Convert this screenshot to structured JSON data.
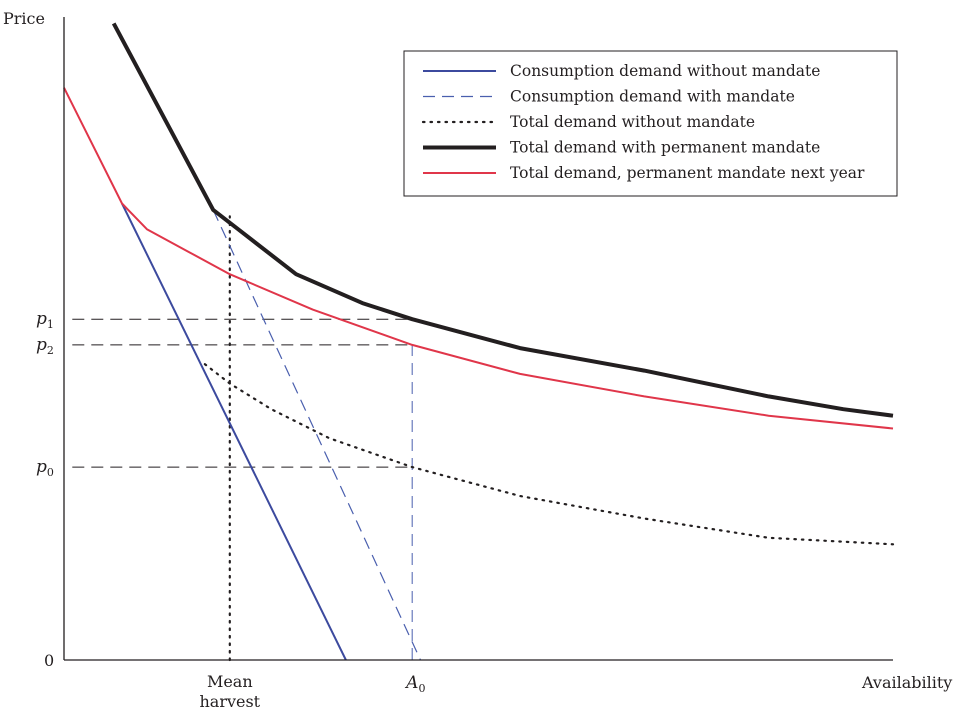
{
  "chart_data": {
    "type": "line",
    "title": "",
    "ylabel": "Price",
    "xlabel": "Availability",
    "x_ticks": [
      {
        "id": "mean-harvest",
        "lines": [
          "Mean",
          "harvest"
        ],
        "x": 0.2
      },
      {
        "id": "a0",
        "label": "A",
        "sub": "0",
        "x": 0.42
      }
    ],
    "y_ticks": [
      {
        "id": "p1",
        "label": "p",
        "sub": "1",
        "y": 0.53,
        "guide_to_x": 0.42
      },
      {
        "id": "p2",
        "label": "p",
        "sub": "2",
        "y": 0.49,
        "guide_to_x": 0.42
      },
      {
        "id": "p0",
        "label": "p",
        "sub": "0",
        "y": 0.3,
        "guide_to_x": 0.42
      },
      {
        "id": "zero",
        "label": "0",
        "y": 0.0
      }
    ],
    "xlim": [
      0,
      1
    ],
    "ylim": [
      0,
      1
    ],
    "vertical_guides": [
      {
        "name": "mean-harvest-guide",
        "x": 0.2,
        "y_from": 0.0,
        "y_to": 0.69,
        "style": "dotted",
        "color": "#231f20"
      },
      {
        "name": "a0-guide",
        "x": 0.42,
        "y_from": 0.0,
        "y_to": 0.49,
        "style": "dashed",
        "color": "#4a5fae"
      }
    ],
    "legend": {
      "position": "top-right",
      "entries": [
        {
          "label": "Consumption demand without mandate",
          "color": "#3c4a9e",
          "style": "solid",
          "width": 2
        },
        {
          "label": "Consumption demand with mandate",
          "color": "#4a5fae",
          "style": "dashed",
          "width": 1.2
        },
        {
          "label": "Total demand without mandate",
          "color": "#231f20",
          "style": "dotted",
          "width": 2.2
        },
        {
          "label": "Total demand with permanent mandate",
          "color": "#231f20",
          "style": "solid",
          "width": 4
        },
        {
          "label": "Total demand, permanent mandate next year",
          "color": "#e0364a",
          "style": "solid",
          "width": 2
        }
      ]
    },
    "series": [
      {
        "name": "Consumption demand without mandate",
        "x": [
          0.07,
          0.34
        ],
        "y": [
          0.71,
          0.0
        ]
      },
      {
        "name": "Consumption demand with mandate",
        "x": [
          0.18,
          0.43
        ],
        "y": [
          0.7,
          0.0
        ]
      },
      {
        "name": "Total demand without mandate",
        "x": [
          0.17,
          0.2,
          0.25,
          0.32,
          0.42,
          0.55,
          0.7,
          0.85,
          1.0
        ],
        "y": [
          0.46,
          0.43,
          0.39,
          0.345,
          0.3,
          0.255,
          0.22,
          0.19,
          0.18
        ]
      },
      {
        "name": "Total demand with permanent mandate",
        "x": [
          0.06,
          0.18,
          0.21,
          0.28,
          0.36,
          0.42,
          0.55,
          0.7,
          0.85,
          0.94,
          1.0
        ],
        "y": [
          0.99,
          0.7,
          0.67,
          0.6,
          0.555,
          0.53,
          0.485,
          0.45,
          0.41,
          0.39,
          0.38
        ]
      },
      {
        "name": "Total demand, permanent mandate next year",
        "x": [
          0.0,
          0.07,
          0.1,
          0.15,
          0.2,
          0.3,
          0.42,
          0.55,
          0.7,
          0.85,
          1.0
        ],
        "y": [
          0.89,
          0.71,
          0.67,
          0.635,
          0.6,
          0.545,
          0.49,
          0.445,
          0.41,
          0.38,
          0.36
        ]
      }
    ]
  }
}
